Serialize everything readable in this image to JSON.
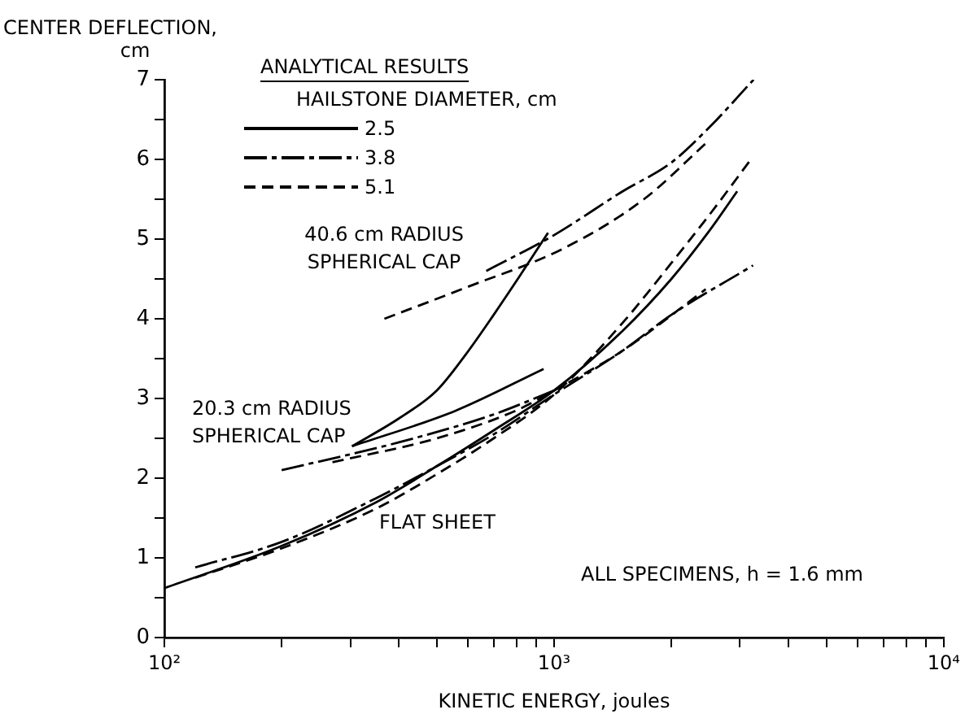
{
  "chart_data": {
    "type": "line",
    "xlabel": "KINETIC ENERGY, joules",
    "ylabel": "CENTER DEFLECTION,\ncm",
    "legend_title": "HAILSTONE DIAMETER, cm",
    "legend": "top left",
    "log": "x",
    "grid": false,
    "marker": "none",
    "xlim": [
      100,
      10000
    ],
    "ylim": [
      0,
      7
    ],
    "xticks": [
      {
        "value": 100,
        "label": "10²"
      },
      {
        "value": 200,
        "label": null
      },
      {
        "value": 300,
        "label": null
      },
      {
        "value": 400,
        "label": null
      },
      {
        "value": 500,
        "label": null
      },
      {
        "value": 600,
        "label": null
      },
      {
        "value": 700,
        "label": null
      },
      {
        "value": 800,
        "label": null
      },
      {
        "value": 900,
        "label": null
      },
      {
        "value": 1000,
        "label": "10³"
      },
      {
        "value": 2000,
        "label": null
      },
      {
        "value": 3000,
        "label": null
      },
      {
        "value": 4000,
        "label": null
      },
      {
        "value": 5000,
        "label": null
      },
      {
        "value": 6000,
        "label": null
      },
      {
        "value": 7000,
        "label": null
      },
      {
        "value": 8000,
        "label": null
      },
      {
        "value": 9000,
        "label": null
      },
      {
        "value": 10000,
        "label": "10⁴"
      }
    ],
    "yticks": [
      0,
      {
        "value": 0.5,
        "label": null
      },
      1,
      {
        "value": 1.5,
        "label": null
      },
      2,
      {
        "value": 2.5,
        "label": null
      },
      3,
      {
        "value": 3.5,
        "label": null
      },
      4,
      {
        "value": 4.5,
        "label": null
      },
      5,
      {
        "value": 5.5,
        "label": null
      },
      6,
      {
        "value": 6.5,
        "label": null
      },
      7
    ],
    "annotations": [
      "ANALYTICAL RESULTS",
      "40.6 cm RADIUS\nSPHERICAL CAP",
      "20.3 cm RADIUS\nSPHERICAL CAP",
      "FLAT SHEET",
      "ALL SPECIMENS, h = 1.6 mm"
    ],
    "series": [
      {
        "name": "2.5",
        "color": "#000000",
        "line_style": "solid",
        "x": [
          100,
          200,
          350,
          500,
          700,
          1000,
          1500,
          2000,
          2500,
          2950
        ],
        "values": [
          0.62,
          1.15,
          1.7,
          2.15,
          2.6,
          3.1,
          3.85,
          4.5,
          5.1,
          5.6
        ]
      },
      {
        "name": "3.8",
        "color": "#000000",
        "line_style": "dashdot",
        "x": [
          120,
          200,
          350,
          500,
          700,
          1000,
          1500,
          2000,
          3240
        ],
        "values": [
          0.88,
          1.2,
          1.75,
          2.15,
          2.55,
          3.05,
          3.6,
          4.05,
          4.67
        ]
      },
      {
        "name": "5.1",
        "color": "#000000",
        "line_style": "dashed",
        "x": [
          120,
          200,
          350,
          500,
          700,
          1000,
          1500,
          2000,
          2500,
          3200
        ],
        "values": [
          0.75,
          1.12,
          1.62,
          2.05,
          2.5,
          3.05,
          3.95,
          4.7,
          5.3,
          6.0
        ]
      },
      {
        "color": "#000000",
        "line_style": "solid",
        "x": [
          303,
          555,
          940
        ],
        "values": [
          2.4,
          2.84,
          3.37
        ]
      },
      {
        "color": "#000000",
        "line_style": "dashdot",
        "x": [
          200,
          400,
          700,
          1000
        ],
        "values": [
          2.1,
          2.45,
          2.8,
          3.1
        ]
      },
      {
        "color": "#000000",
        "line_style": "dashed",
        "x": [
          270,
          500,
          800,
          1000,
          1500,
          2450
        ],
        "values": [
          2.2,
          2.5,
          2.85,
          3.1,
          3.6,
          4.37
        ]
      },
      {
        "color": "#000000",
        "line_style": "solid",
        "x": [
          303,
          400,
          500,
          593,
          700,
          820,
          965
        ],
        "values": [
          2.4,
          2.75,
          3.1,
          3.55,
          4.05,
          4.55,
          5.08
        ]
      },
      {
        "color": "#000000",
        "line_style": "dashdot",
        "x": [
          670,
          1000,
          1500,
          2000,
          2500,
          3250
        ],
        "values": [
          4.6,
          5.05,
          5.6,
          5.96,
          6.4,
          7.0
        ]
      },
      {
        "color": "#000000",
        "line_style": "dashed",
        "x": [
          367,
          600,
          1055,
          1700,
          2450
        ],
        "values": [
          4.0,
          4.4,
          4.88,
          5.5,
          6.2
        ]
      }
    ]
  }
}
